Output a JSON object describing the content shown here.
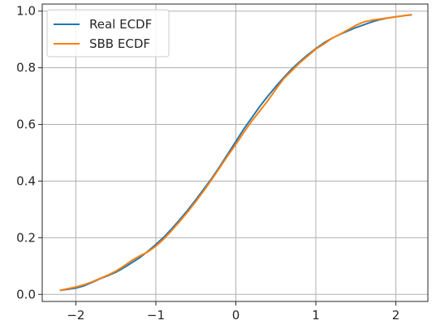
{
  "chart_data": {
    "type": "line",
    "title": "",
    "xlabel": "",
    "ylabel": "",
    "xlim": [
      -2.42,
      2.4
    ],
    "ylim": [
      -0.025,
      1.025
    ],
    "grid": true,
    "legend_position": "top-left",
    "x_ticks": [
      -2,
      -1,
      0,
      1,
      2
    ],
    "x_tick_labels": [
      "−2",
      "−1",
      "0",
      "1",
      "2"
    ],
    "y_ticks": [
      0.0,
      0.2,
      0.4,
      0.6,
      0.8,
      1.0
    ],
    "y_tick_labels": [
      "0.0",
      "0.2",
      "0.4",
      "0.6",
      "0.8",
      "1.0"
    ],
    "series": [
      {
        "name": "Real ECDF",
        "color": "#1f77b4",
        "x": [
          -2.2,
          -2.1,
          -2.0,
          -1.9,
          -1.8,
          -1.7,
          -1.6,
          -1.5,
          -1.4,
          -1.3,
          -1.2,
          -1.1,
          -1.0,
          -0.9,
          -0.8,
          -0.7,
          -0.6,
          -0.5,
          -0.4,
          -0.3,
          -0.2,
          -0.1,
          0.0,
          0.1,
          0.2,
          0.3,
          0.4,
          0.5,
          0.6,
          0.7,
          0.8,
          0.9,
          1.0,
          1.1,
          1.2,
          1.3,
          1.4,
          1.5,
          1.6,
          1.7,
          1.8,
          1.9,
          2.0,
          2.1,
          2.2
        ],
        "values": [
          0.014,
          0.018,
          0.022,
          0.03,
          0.042,
          0.055,
          0.066,
          0.078,
          0.094,
          0.112,
          0.13,
          0.152,
          0.176,
          0.202,
          0.232,
          0.264,
          0.298,
          0.334,
          0.372,
          0.41,
          0.452,
          0.496,
          0.54,
          0.584,
          0.624,
          0.664,
          0.7,
          0.734,
          0.766,
          0.796,
          0.822,
          0.846,
          0.868,
          0.888,
          0.904,
          0.918,
          0.93,
          0.942,
          0.952,
          0.962,
          0.97,
          0.976,
          0.98,
          0.984,
          0.987
        ]
      },
      {
        "name": "SBB ECDF",
        "color": "#ff7f0e",
        "x": [
          -2.2,
          -2.1,
          -2.0,
          -1.9,
          -1.8,
          -1.7,
          -1.6,
          -1.5,
          -1.4,
          -1.3,
          -1.2,
          -1.1,
          -1.0,
          -0.9,
          -0.8,
          -0.7,
          -0.6,
          -0.5,
          -0.4,
          -0.3,
          -0.2,
          -0.1,
          0.0,
          0.1,
          0.2,
          0.3,
          0.4,
          0.5,
          0.6,
          0.7,
          0.8,
          0.9,
          1.0,
          1.1,
          1.2,
          1.3,
          1.4,
          1.5,
          1.6,
          1.7,
          1.8,
          1.9,
          2.0,
          2.1,
          2.2
        ],
        "values": [
          0.014,
          0.02,
          0.026,
          0.034,
          0.044,
          0.056,
          0.068,
          0.082,
          0.1,
          0.12,
          0.136,
          0.15,
          0.17,
          0.196,
          0.226,
          0.258,
          0.292,
          0.328,
          0.366,
          0.406,
          0.448,
          0.49,
          0.53,
          0.572,
          0.612,
          0.648,
          0.684,
          0.724,
          0.762,
          0.79,
          0.818,
          0.842,
          0.866,
          0.884,
          0.904,
          0.918,
          0.934,
          0.95,
          0.962,
          0.968,
          0.972,
          0.976,
          0.98,
          0.984,
          0.988
        ]
      }
    ]
  }
}
